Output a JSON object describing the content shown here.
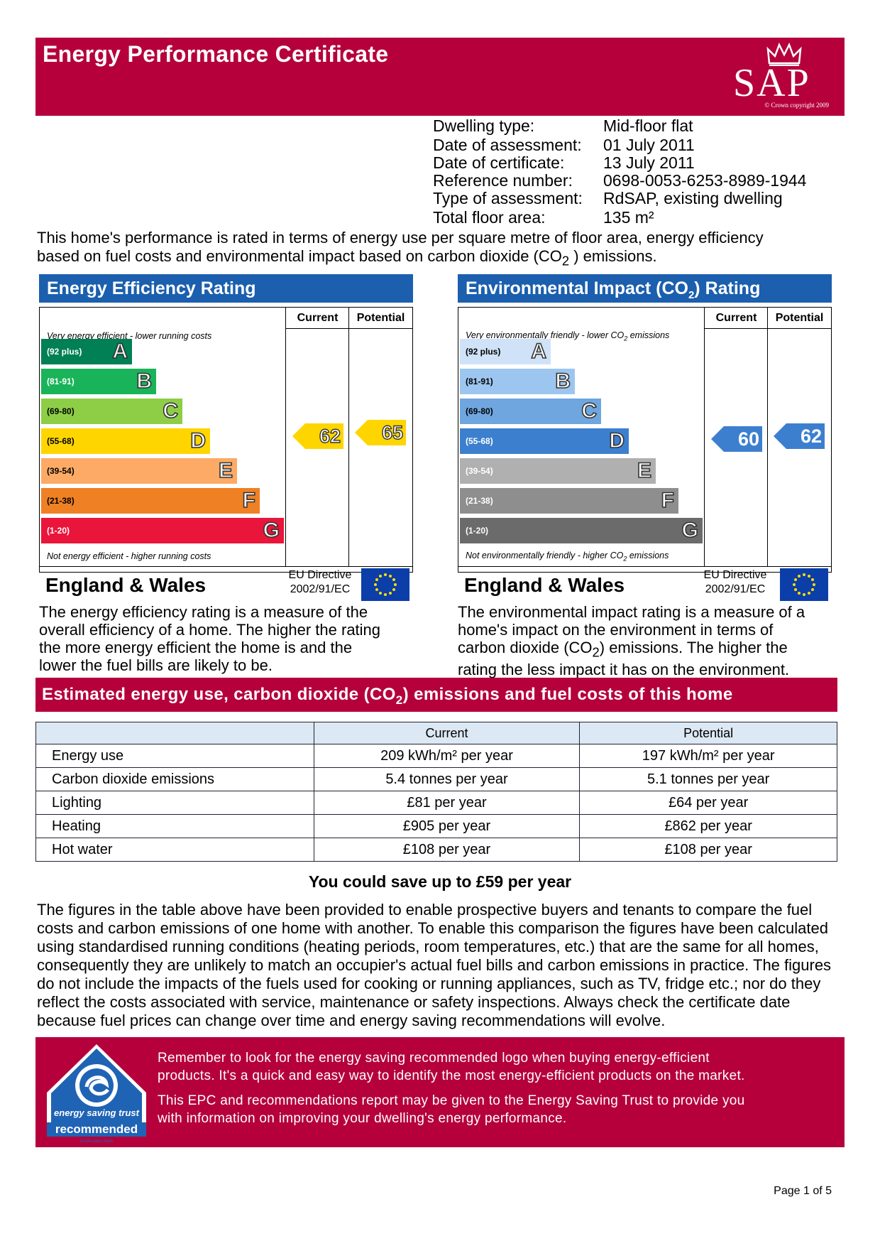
{
  "header": {
    "title": "Energy Performance Certificate",
    "logo_text": "SAP",
    "logo_copyright": "© Crown copyright 2009",
    "color": "#b5003c"
  },
  "details": [
    {
      "label": "Dwelling type:",
      "value": "Mid-floor flat"
    },
    {
      "label": "Date of assessment:",
      "value": "01 July 2011"
    },
    {
      "label": "Date of certificate:",
      "value": "13 July 2011"
    },
    {
      "label": "Reference number:",
      "value": "0698-0053-6253-8989-1944"
    },
    {
      "label": "Type of assessment:",
      "value": "RdSAP, existing dwelling"
    },
    {
      "label": "Total floor area:",
      "value": "135 m²"
    }
  ],
  "intro": {
    "line1": "This home's performance is rated in terms of energy use per square metre of floor area, energy efficiency",
    "line2_pre": "based on fuel costs and environmental impact based on carbon dioxide (CO",
    "line2_sub": "2",
    "line2_post": " ) emissions."
  },
  "charts": {
    "efficiency": {
      "title": "Energy Efficiency Rating",
      "col_current": "Current",
      "col_potential": "Potential",
      "top_note": "Very energy efficient - lower running costs",
      "bottom_note": "Not energy efficient - higher running costs",
      "region": "England & Wales",
      "directive_line1": "EU Directive",
      "directive_line2": "2002/91/EC",
      "bands": [
        {
          "range": "(92 plus)",
          "letter": "A",
          "color": "#008054"
        },
        {
          "range": "(81-91)",
          "letter": "B",
          "color": "#19b459"
        },
        {
          "range": "(69-80)",
          "letter": "C",
          "color": "#8dce46"
        },
        {
          "range": "(55-68)",
          "letter": "D",
          "color": "#ffd500"
        },
        {
          "range": "(39-54)",
          "letter": "E",
          "color": "#fcaa65"
        },
        {
          "range": "(21-38)",
          "letter": "F",
          "color": "#ef8023"
        },
        {
          "range": "(1-20)",
          "letter": "G",
          "color": "#e9153b"
        }
      ],
      "current": "62",
      "potential": "65",
      "current_color": "#ffd500",
      "potential_color": "#ffd500"
    },
    "environmental": {
      "title_pre": "Environmental Impact (CO",
      "title_sub": "2",
      "title_post": ") Rating",
      "col_current": "Current",
      "col_potential": "Potential",
      "top_note_pre": "Very environmentally friendly - lower CO",
      "top_note_sub": "2",
      "top_note_post": " emissions",
      "bottom_note_pre": "Not environmentally friendly - higher CO",
      "bottom_note_sub": "2",
      "bottom_note_post": " emissions",
      "region": "England & Wales",
      "directive_line1": "EU Directive",
      "directive_line2": "2002/91/EC",
      "bands": [
        {
          "range": "(92 plus)",
          "letter": "A",
          "color": "#cfe2f7"
        },
        {
          "range": "(81-91)",
          "letter": "B",
          "color": "#9cc6ef"
        },
        {
          "range": "(69-80)",
          "letter": "C",
          "color": "#6fa6df"
        },
        {
          "range": "(55-68)",
          "letter": "D",
          "color": "#3d7fcf"
        },
        {
          "range": "(39-54)",
          "letter": "E",
          "color": "#b0b0b0"
        },
        {
          "range": "(21-38)",
          "letter": "F",
          "color": "#8e8e8e"
        },
        {
          "range": "(1-20)",
          "letter": "G",
          "color": "#6b6b6b"
        }
      ],
      "current": "60",
      "potential": "62",
      "current_color": "#3d7fcf",
      "potential_color": "#3d7fcf"
    }
  },
  "desc_efficiency": [
    "The energy efficiency rating is a measure of the",
    "overall efficiency of a home. The higher the rating",
    "the more energy efficient the home is and the",
    "lower the fuel bills are likely to be."
  ],
  "desc_env": {
    "l1": "The environmental impact rating is a measure of a",
    "l2": "home's impact on the environment in terms of",
    "l3_pre": "carbon dioxide (CO",
    "l3_sub": "2",
    "l3_post": ") emissions. The higher the",
    "l4": "rating the less impact it has on the environment."
  },
  "section": {
    "title_pre": "Estimated energy use, carbon dioxide (CO",
    "title_sub": "2",
    "title_post": ") emissions and fuel costs of this home"
  },
  "costs": {
    "col_current": "Current",
    "col_potential": "Potential",
    "rows": [
      {
        "label": "Energy use",
        "current": "209 kWh/m² per year",
        "potential": "197 kWh/m² per year"
      },
      {
        "label": "Carbon dioxide emissions",
        "current": "5.4 tonnes per year",
        "potential": "5.1 tonnes per year"
      },
      {
        "label": "Lighting",
        "current": "£81 per year",
        "potential": "£64 per year"
      },
      {
        "label": "Heating",
        "current": "£905 per year",
        "potential": "£862 per year"
      },
      {
        "label": "Hot water",
        "current": "£108 per year",
        "potential": "£108 per year"
      }
    ]
  },
  "save_line": "You could save up to £59 per year",
  "explain": [
    "The figures in the table above have been provided to enable prospective buyers and tenants to compare the fuel",
    "costs and carbon emissions of one home with another. To enable this comparison the figures have been calculated",
    "using standardised running conditions (heating periods, room temperatures, etc.) that are the same for all homes,",
    "consequently they are unlikely to match an occupier's actual fuel bills and carbon emissions in practice. The figures",
    "do not include the impacts of the fuels used for cooking or running appliances, such as TV, fridge etc.; nor do they",
    "reflect the costs associated with service, maintenance or safety inspections. Always check the certificate date",
    "because fuel prices can change over time and energy saving recommendations will evolve."
  ],
  "bottom": {
    "logo_text1": "energy saving trust",
    "logo_text2": "recommended",
    "logo_text3": "Certification Mark",
    "p1_l1": "Remember to look for the energy saving recommended logo when buying energy-efficient",
    "p1_l2": "products. It's a quick and easy way to identify the most energy-efficient products on the market.",
    "p2_l1": "This EPC and recommendations report may be given to the Energy Saving Trust to provide you",
    "p2_l2": "with information on improving your dwelling's energy performance."
  },
  "page_number": "Page 1 of 5"
}
